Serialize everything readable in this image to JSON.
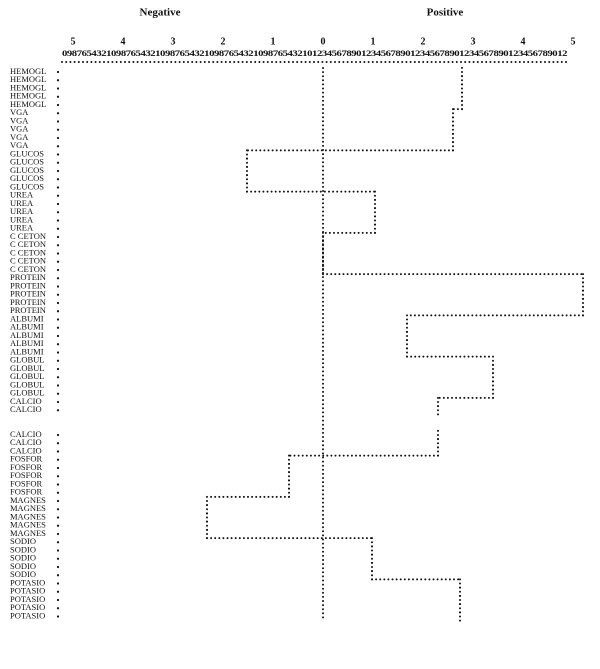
{
  "chart_data": {
    "type": "step-profile",
    "headers": [
      "Negative",
      "Positive"
    ],
    "digit_scale": "0987654321098765432109876543210987654321098765432101234567890123456789012345678901234567890123456789012",
    "xlim": [
      -5,
      5.3
    ],
    "xticks": [
      {
        "value": -5,
        "label": "5"
      },
      {
        "value": -4,
        "label": "4"
      },
      {
        "value": -3,
        "label": "3"
      },
      {
        "value": -2,
        "label": "2"
      },
      {
        "value": -1,
        "label": "1"
      },
      0,
      1,
      2,
      3,
      4,
      5
    ],
    "color": "#111111",
    "categories": [
      "HEMOGL",
      "HEMOGL",
      "HEMOGL",
      "HEMOGL",
      "HEMOGL",
      "VGA",
      "VGA",
      "VGA",
      "VGA",
      "VGA",
      "GLUCOS",
      "GLUCOS",
      "GLUCOS",
      "GLUCOS",
      "GLUCOS",
      "UREA",
      "UREA",
      "UREA",
      "UREA",
      "UREA",
      "C CETON",
      "C CETON",
      "C CETON",
      "C CETON",
      "C CETON",
      "PROTEIN",
      "PROTEIN",
      "PROTEIN",
      "PROTEIN",
      "PROTEIN",
      "ALBUMI",
      "ALBUMI",
      "ALBUMI",
      "ALBUMI",
      "ALBUMI",
      "GLOBUL",
      "GLOBUL",
      "GLOBUL",
      "GLOBUL",
      "GLOBUL",
      "CALCIO",
      "CALCIO",
      null,
      null,
      "CALCIO",
      "CALCIO",
      "CALCIO",
      "FOSFOR",
      "FOSFOR",
      "FOSFOR",
      "FOSFOR",
      "FOSFOR",
      "MAGNES",
      "MAGNES",
      "MAGNES",
      "MAGNES",
      "MAGNES",
      "SODIO",
      "SODIO",
      "SODIO",
      "SODIO",
      "SODIO",
      "POTASIO",
      "POTASIO",
      "POTASIO",
      "POTASIO",
      "POTASIO"
    ],
    "values": [
      2.78,
      2.78,
      2.78,
      2.78,
      2.78,
      2.6,
      2.6,
      2.6,
      2.6,
      2.6,
      -1.52,
      -1.52,
      -1.52,
      -1.52,
      -1.52,
      1.04,
      1.04,
      1.04,
      1.04,
      1.04,
      0,
      0,
      0,
      0,
      0,
      5.2,
      5.2,
      5.2,
      5.2,
      5.2,
      1.68,
      1.68,
      1.68,
      1.68,
      1.68,
      3.4,
      3.4,
      3.4,
      3.4,
      3.4,
      2.3,
      2.3,
      null,
      null,
      2.3,
      2.3,
      2.3,
      -0.68,
      -0.68,
      -0.68,
      -0.68,
      -0.68,
      -2.32,
      -2.32,
      -2.32,
      -2.32,
      -2.32,
      0.98,
      0.98,
      0.98,
      0.98,
      0.98,
      2.74,
      2.74,
      2.74,
      2.74,
      2.74
    ]
  }
}
